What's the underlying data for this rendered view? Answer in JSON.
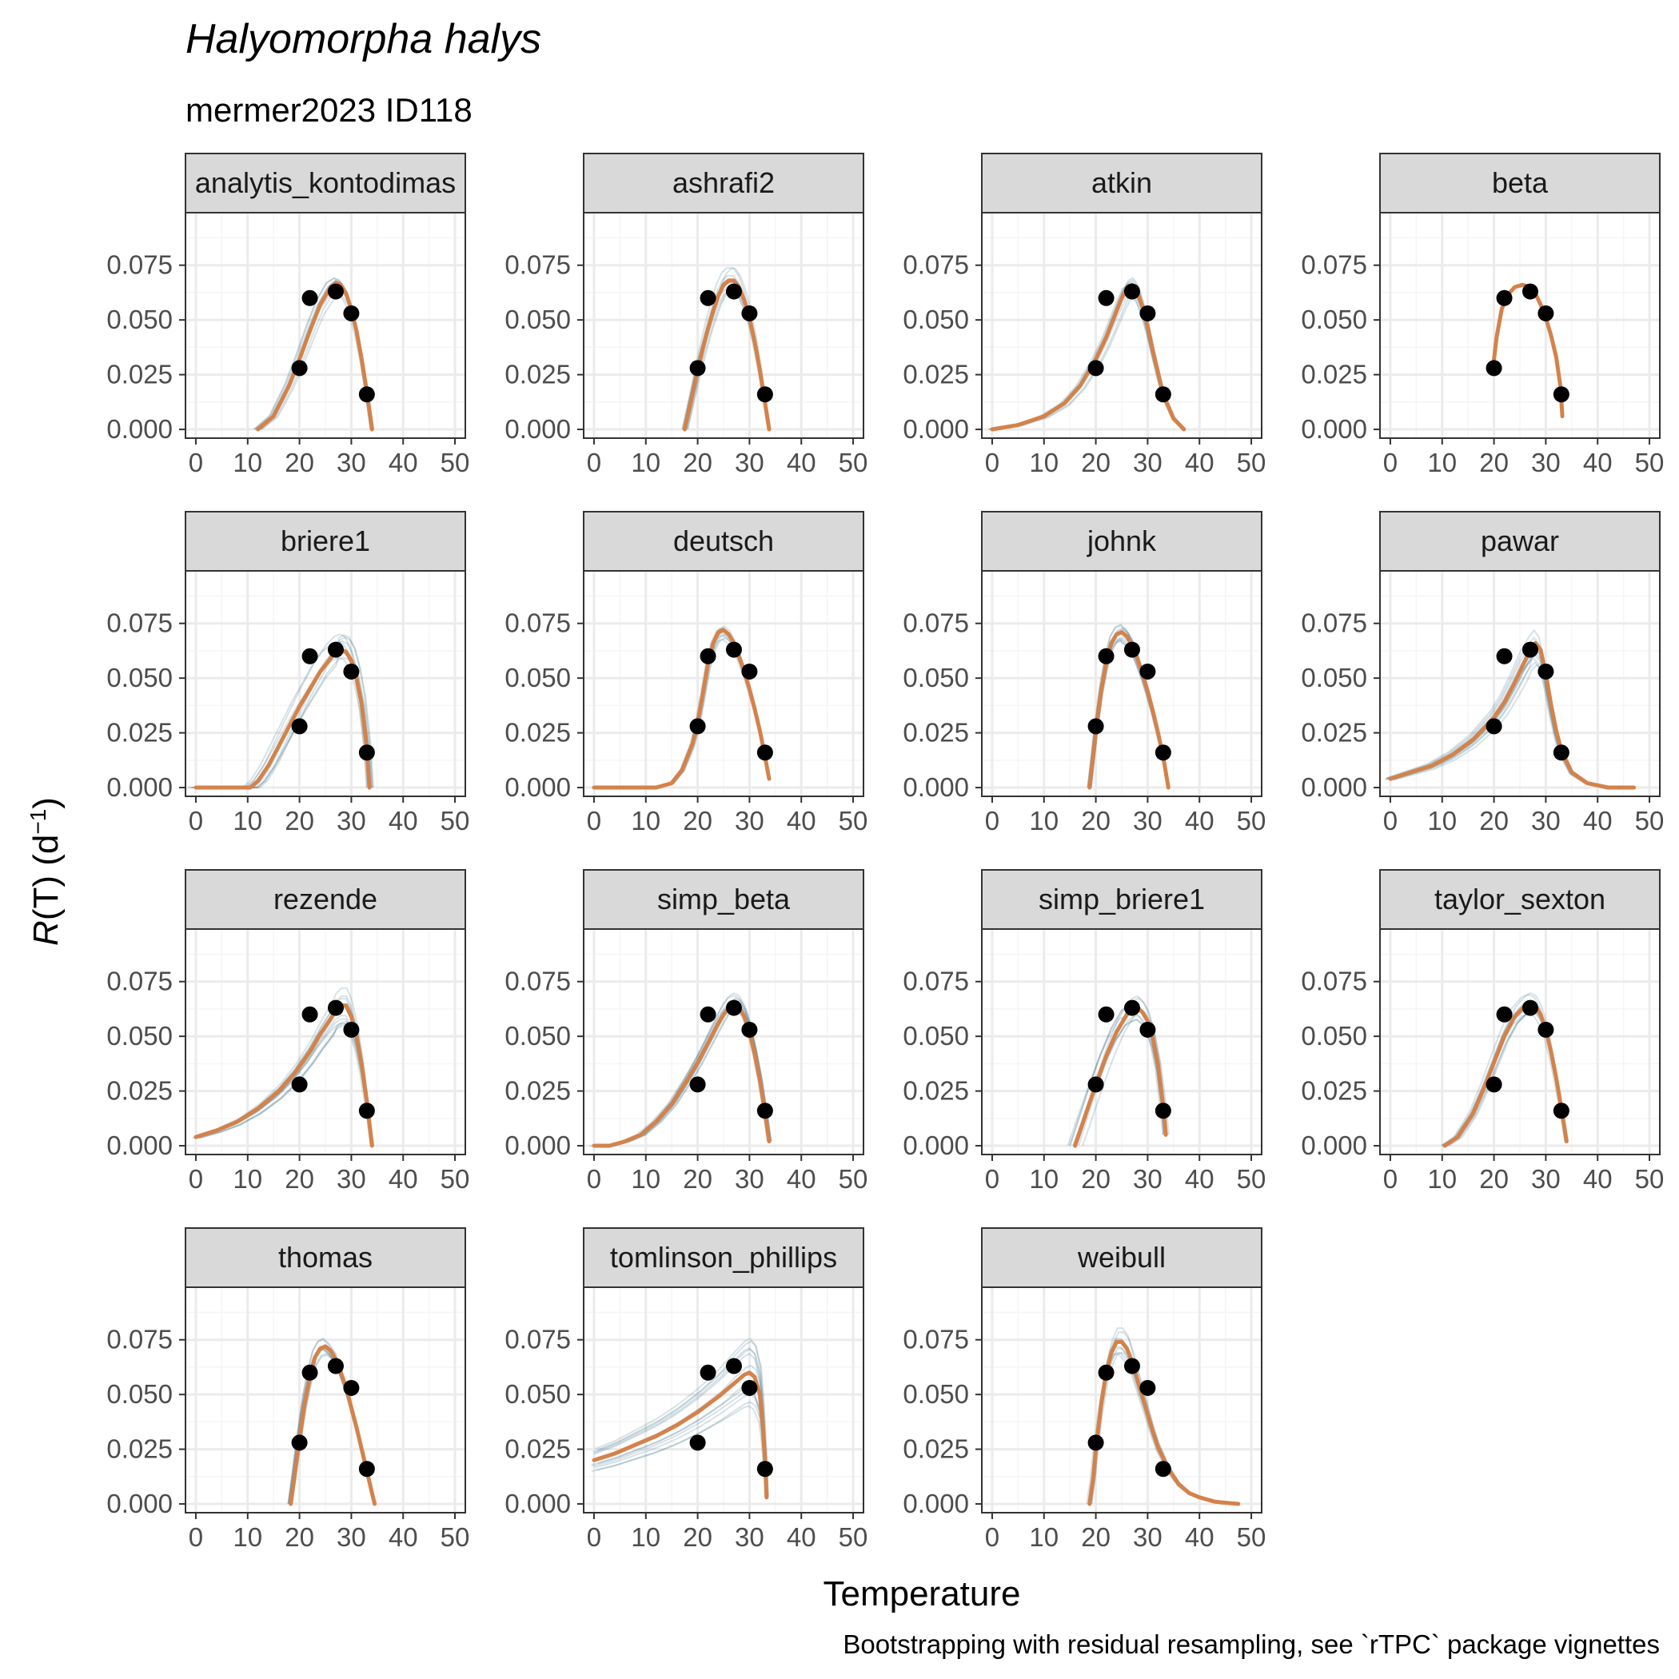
{
  "chart_data": {
    "type": "line",
    "title": "Halyomorpha halys",
    "subtitle": "mermer2023 ID118",
    "xlabel": "Temperature",
    "ylabel_italic": "R",
    "ylabel_rest": "(T) (d",
    "ylabel_sup": "−1",
    "ylabel_close": ")",
    "caption": "Bootstrapping with residual resampling, see `rTPC` package vignettes",
    "xlim": [
      -2,
      52
    ],
    "ylim": [
      -0.004,
      0.099
    ],
    "x_ticks": [
      0,
      10,
      20,
      30,
      40,
      50
    ],
    "y_ticks": [
      0.0,
      0.025,
      0.05,
      0.075
    ],
    "y_tick_labels": [
      "0.000",
      "0.025",
      "0.050",
      "0.075"
    ],
    "grid": true,
    "colors": {
      "fit": "#d4824a",
      "bootstrap": "#1f5f7a",
      "points": "#000000",
      "strip_fill": "#d9d9d9",
      "grid_major": "#ebebeb",
      "grid_minor": "#f5f5f5",
      "panel_border": "#333333"
    },
    "observed_points": {
      "x": [
        20,
        22,
        27,
        30,
        33
      ],
      "y": [
        0.028,
        0.06,
        0.063,
        0.053,
        0.016
      ]
    },
    "panels": [
      {
        "name": "analytis_kontodimas",
        "fit": {
          "x": [
            12,
            15,
            18,
            20,
            22,
            24,
            26,
            27,
            28,
            29,
            30,
            31,
            32,
            33,
            34
          ],
          "y": [
            0.0,
            0.006,
            0.02,
            0.032,
            0.045,
            0.057,
            0.065,
            0.067,
            0.066,
            0.062,
            0.055,
            0.045,
            0.032,
            0.017,
            0.0
          ]
        },
        "bootstrap": {
          "count": 10,
          "spread_y": 0.006,
          "spread_x": 1.0
        }
      },
      {
        "name": "ashrafi2",
        "fit": {
          "x": [
            17.5,
            19,
            20,
            21,
            22,
            23,
            24,
            25,
            26,
            27,
            28,
            29,
            30,
            31,
            32,
            33,
            33.8
          ],
          "y": [
            0.0,
            0.016,
            0.027,
            0.037,
            0.046,
            0.054,
            0.061,
            0.066,
            0.068,
            0.068,
            0.065,
            0.059,
            0.051,
            0.04,
            0.027,
            0.012,
            0.0
          ]
        },
        "bootstrap": {
          "count": 10,
          "spread_y": 0.006,
          "spread_x": 0.6
        }
      },
      {
        "name": "atkin",
        "fit": {
          "x": [
            0,
            5,
            10,
            14,
            17,
            20,
            22,
            24,
            25,
            26,
            27,
            28,
            29,
            30,
            31,
            32,
            33,
            35,
            37
          ],
          "y": [
            0.0,
            0.002,
            0.006,
            0.012,
            0.02,
            0.032,
            0.042,
            0.054,
            0.06,
            0.065,
            0.066,
            0.063,
            0.056,
            0.047,
            0.036,
            0.026,
            0.016,
            0.005,
            0.0
          ]
        },
        "bootstrap": {
          "count": 10,
          "spread_y": 0.006,
          "spread_x": 1.0
        }
      },
      {
        "name": "beta",
        "fit": {
          "x": [
            19.8,
            20.5,
            21.5,
            22.5,
            24,
            25.5,
            27,
            28,
            29,
            30,
            31,
            32,
            32.8,
            33.2
          ],
          "y": [
            0.028,
            0.042,
            0.055,
            0.061,
            0.065,
            0.066,
            0.065,
            0.062,
            0.057,
            0.051,
            0.043,
            0.033,
            0.02,
            0.006
          ]
        },
        "bootstrap": {
          "count": 0,
          "spread_y": 0.0,
          "spread_x": 0.0
        }
      },
      {
        "name": "briere1",
        "fit": {
          "x": [
            0,
            10.5,
            12,
            14,
            16,
            18,
            20,
            22,
            24,
            26,
            27,
            28,
            29,
            30,
            31,
            32,
            33,
            33.5
          ],
          "y": [
            0.0,
            0.0,
            0.003,
            0.01,
            0.019,
            0.028,
            0.037,
            0.045,
            0.053,
            0.059,
            0.062,
            0.063,
            0.062,
            0.058,
            0.05,
            0.038,
            0.018,
            0.0
          ]
        },
        "bootstrap": {
          "count": 10,
          "spread_y": 0.008,
          "spread_x": 2.0
        }
      },
      {
        "name": "deutsch",
        "fit": {
          "x": [
            0,
            12,
            15,
            17,
            19,
            20,
            21,
            22,
            23,
            24,
            25,
            26,
            27,
            28,
            29,
            30,
            31,
            32,
            33,
            33.8
          ],
          "y": [
            0.0,
            0.0,
            0.002,
            0.008,
            0.02,
            0.03,
            0.043,
            0.057,
            0.066,
            0.071,
            0.072,
            0.07,
            0.066,
            0.06,
            0.053,
            0.045,
            0.036,
            0.026,
            0.014,
            0.004
          ]
        },
        "bootstrap": {
          "count": 10,
          "spread_y": 0.004,
          "spread_x": 0.4
        }
      },
      {
        "name": "johnk",
        "fit": {
          "x": [
            18.8,
            19.5,
            20,
            21,
            22,
            23,
            24,
            25,
            26,
            27,
            28,
            29,
            30,
            31,
            32,
            33,
            34
          ],
          "y": [
            0.0,
            0.015,
            0.026,
            0.044,
            0.057,
            0.066,
            0.07,
            0.071,
            0.069,
            0.065,
            0.059,
            0.052,
            0.044,
            0.035,
            0.025,
            0.014,
            0.0
          ]
        },
        "bootstrap": {
          "count": 10,
          "spread_y": 0.004,
          "spread_x": 0.4
        }
      },
      {
        "name": "pawar",
        "fit": {
          "x": [
            0,
            4,
            8,
            12,
            16,
            20,
            22,
            24,
            26,
            27,
            28,
            29,
            30,
            31,
            32,
            33,
            35,
            38,
            42,
            47
          ],
          "y": [
            0.004,
            0.007,
            0.01,
            0.015,
            0.022,
            0.032,
            0.039,
            0.048,
            0.058,
            0.063,
            0.066,
            0.063,
            0.052,
            0.038,
            0.026,
            0.017,
            0.007,
            0.002,
            0.0,
            0.0
          ]
        },
        "bootstrap": {
          "count": 12,
          "spread_y": 0.01,
          "spread_x": 1.0
        }
      },
      {
        "name": "rezende",
        "fit": {
          "x": [
            0,
            4,
            8,
            12,
            16,
            19,
            22,
            24,
            26,
            27,
            28,
            29,
            30,
            31,
            32,
            33,
            34
          ],
          "y": [
            0.004,
            0.007,
            0.011,
            0.017,
            0.025,
            0.033,
            0.043,
            0.051,
            0.058,
            0.062,
            0.064,
            0.064,
            0.059,
            0.05,
            0.037,
            0.02,
            0.0
          ]
        },
        "bootstrap": {
          "count": 12,
          "spread_y": 0.01,
          "spread_x": 0.8
        }
      },
      {
        "name": "simp_beta",
        "fit": {
          "x": [
            0,
            3,
            6,
            9,
            12,
            15,
            18,
            20,
            22,
            24,
            25,
            26,
            27,
            28,
            29,
            30,
            31,
            32,
            33,
            33.8
          ],
          "y": [
            0.0,
            0.0,
            0.002,
            0.005,
            0.011,
            0.019,
            0.03,
            0.038,
            0.047,
            0.056,
            0.06,
            0.063,
            0.064,
            0.063,
            0.059,
            0.052,
            0.042,
            0.03,
            0.015,
            0.002
          ]
        },
        "bootstrap": {
          "count": 10,
          "spread_y": 0.006,
          "spread_x": 1.0
        }
      },
      {
        "name": "simp_briere1",
        "fit": {
          "x": [
            16,
            18,
            20,
            22,
            24,
            26,
            27,
            28,
            29,
            30,
            31,
            32,
            33,
            33.5
          ],
          "y": [
            0.0,
            0.014,
            0.028,
            0.041,
            0.052,
            0.06,
            0.062,
            0.063,
            0.061,
            0.057,
            0.049,
            0.037,
            0.018,
            0.005
          ]
        },
        "bootstrap": {
          "count": 10,
          "spread_y": 0.006,
          "spread_x": 1.5
        }
      },
      {
        "name": "taylor_sexton",
        "fit": {
          "x": [
            10.5,
            13,
            16,
            18,
            20,
            22,
            24,
            26,
            27,
            28,
            29,
            30,
            31,
            32,
            33,
            34
          ],
          "y": [
            0.0,
            0.004,
            0.015,
            0.026,
            0.038,
            0.05,
            0.059,
            0.064,
            0.065,
            0.064,
            0.06,
            0.053,
            0.043,
            0.031,
            0.017,
            0.002
          ]
        },
        "bootstrap": {
          "count": 10,
          "spread_y": 0.006,
          "spread_x": 1.0
        }
      },
      {
        "name": "thomas",
        "fit": {
          "x": [
            18.3,
            19,
            20,
            21,
            22,
            23,
            24,
            25,
            26,
            27,
            28,
            29,
            30,
            31,
            32,
            33,
            34,
            34.5
          ],
          "y": [
            0.0,
            0.012,
            0.03,
            0.046,
            0.058,
            0.067,
            0.071,
            0.072,
            0.07,
            0.066,
            0.06,
            0.053,
            0.044,
            0.035,
            0.025,
            0.015,
            0.005,
            0.0
          ]
        },
        "bootstrap": {
          "count": 10,
          "spread_y": 0.004,
          "spread_x": 0.5
        }
      },
      {
        "name": "tomlinson_phillips",
        "fit": {
          "x": [
            0,
            4,
            8,
            12,
            16,
            20,
            24,
            27,
            29,
            30,
            31,
            32,
            32.5,
            33,
            33.3
          ],
          "y": [
            0.02,
            0.023,
            0.027,
            0.031,
            0.036,
            0.042,
            0.049,
            0.055,
            0.059,
            0.06,
            0.058,
            0.05,
            0.038,
            0.02,
            0.003
          ]
        },
        "bootstrap": {
          "count": 12,
          "spread_y": 0.02,
          "spread_x": 0.8
        }
      },
      {
        "name": "weibull",
        "fit": {
          "x": [
            18.8,
            19.5,
            20,
            21,
            22,
            23,
            24,
            25,
            26,
            27,
            28,
            29,
            30,
            31,
            32,
            34,
            36,
            38,
            40,
            43,
            47.5
          ],
          "y": [
            0.0,
            0.012,
            0.025,
            0.045,
            0.06,
            0.069,
            0.074,
            0.074,
            0.071,
            0.065,
            0.057,
            0.049,
            0.041,
            0.033,
            0.026,
            0.016,
            0.009,
            0.005,
            0.003,
            0.001,
            0.0
          ]
        },
        "bootstrap": {
          "count": 10,
          "spread_y": 0.006,
          "spread_x": 0.8
        }
      }
    ]
  }
}
